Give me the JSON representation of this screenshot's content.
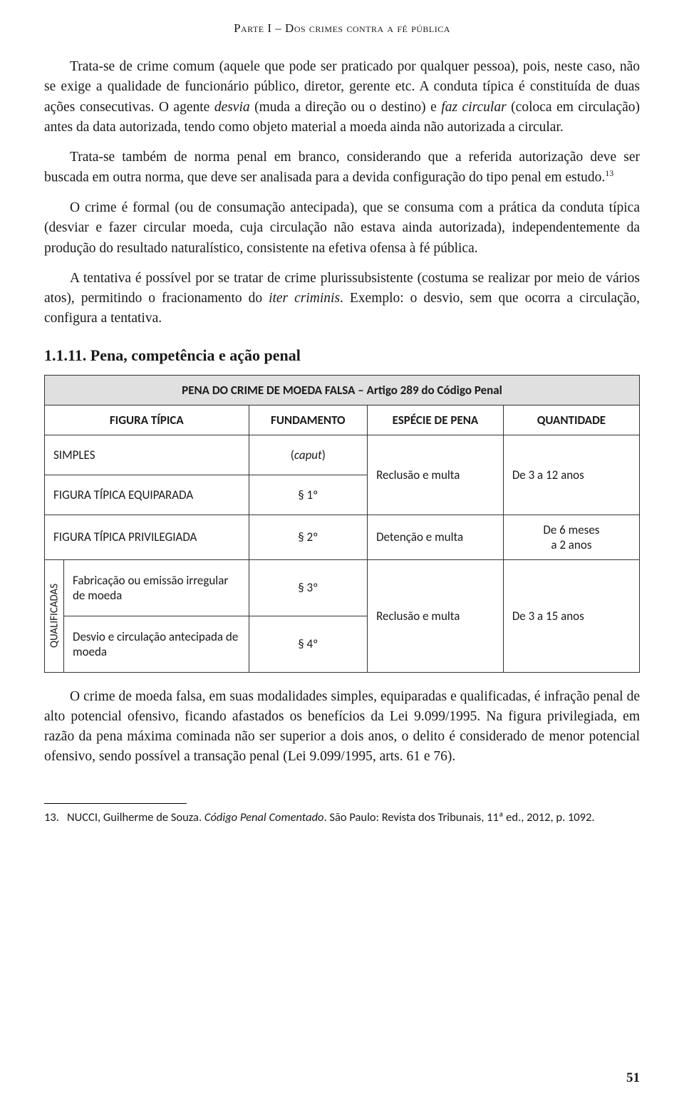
{
  "header": "Parte I – Dos crimes contra a fé pública",
  "p1a": "Trata-se de crime comum (aquele que pode ser praticado por qualquer pessoa), pois, neste caso, não se exige a qualidade de funcionário público, diretor, gerente etc. A conduta típica é constituída de duas ações consecutivas. O agente ",
  "p1_desvia": "desvia",
  "p1b": " (muda a direção ou o destino) e ",
  "p1_faz": "faz circular",
  "p1c": " (coloca em circulação) antes da data autorizada, tendo como objeto material a moeda ainda não autorizada a circular.",
  "p2": "Trata-se também de norma penal em branco, considerando que a referida autorização deve ser buscada em outra norma, que deve ser analisada para a devida configuração do tipo penal em estudo.",
  "p2_sup": "13",
  "p3": "O crime é formal (ou de consumação antecipada), que se consuma com a prática da conduta típica (desviar e fazer circular moeda, cuja circulação não estava ainda autorizada), independentemente da produção do resultado naturalístico, consistente na efetiva ofensa à fé pública.",
  "p4a": "A tentativa é possível por se tratar de crime plurissubsistente (costuma se realizar por meio de vários atos), permitindo o fracionamento do ",
  "p4_iter": "iter criminis",
  "p4b": ". Exemplo: o desvio, sem que ocorra a circulação, configura a tentativa.",
  "section": "1.1.11. Pena, competência e ação penal",
  "table": {
    "title": "PENA DO CRIME DE MOEDA FALSA – Artigo 289 do Código Penal",
    "cols": {
      "c1": "FIGURA TÍPICA",
      "c2": "FUNDAMENTO",
      "c3": "ESPÉCIE DE PENA",
      "c4": "QUANTIDADE"
    },
    "r1": {
      "tipica": "SIMPLES",
      "fund_a": "(",
      "fund_caput": "caput",
      "fund_b": ")"
    },
    "r12_esp": "Reclusão e multa",
    "r12_qtd": "De 3 a 12 anos",
    "r2": {
      "tipica": "FIGURA TÍPICA EQUIPARADA",
      "fund": "§ 1º"
    },
    "r3": {
      "tipica": "FIGURA TÍPICA PRIVILEGIADA",
      "fund": "§ 2º",
      "esp": "Detenção e multa",
      "qtd1": "De 6 meses",
      "qtd2": "a 2 anos"
    },
    "qualificadas_label": "QUALIFICADAS",
    "r4": {
      "tipica": "Fabricação ou emissão irregular de moeda",
      "fund": "§ 3º"
    },
    "r45_esp": "Reclusão e multa",
    "r45_qtd": "De 3 a 15 anos",
    "r5": {
      "tipica": "Desvio e circulação antecipada de moeda",
      "fund": "§ 4º"
    }
  },
  "p5": "O crime de moeda falsa, em suas modalidades simples, equiparadas e qualificadas, é infração penal de alto potencial ofensivo, ficando afastados os benefícios da Lei 9.099/1995. Na figura privilegiada, em razão da pena máxima cominada não ser superior a dois anos, o delito é considerado de menor potencial ofensivo, sendo possível a transação penal (Lei 9.099/1995, arts. 61 e 76).",
  "footnote_num": "13.",
  "footnote_a": "NUCCI, Guilherme de Souza. ",
  "footnote_title": "Código Penal Comentado",
  "footnote_b": ". São Paulo: Revista dos Tribunais, 11ª ed., 2012, p. 1092.",
  "page_number": "51"
}
